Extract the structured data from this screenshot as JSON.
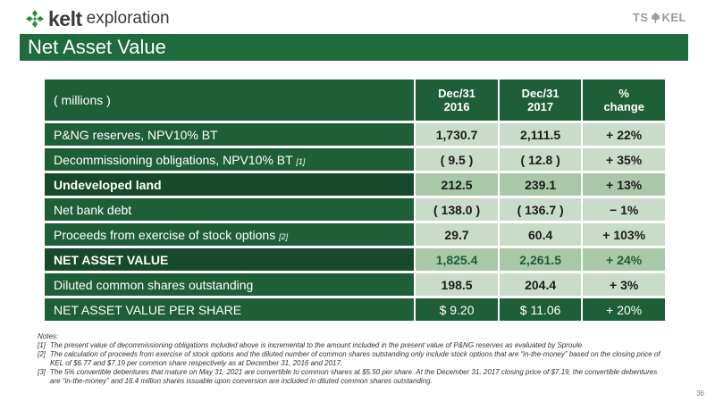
{
  "logo": {
    "brand": "kelt",
    "sub": "exploration"
  },
  "exchange": {
    "left": "TS",
    "right": "KEL"
  },
  "slide": {
    "title": "Net Asset Value",
    "page_number": "36"
  },
  "table": {
    "header": {
      "label": "( millions )",
      "col1": "Dec/31\n2016",
      "col2": "Dec/31\n2017",
      "col3": "%\nchange"
    },
    "rows": [
      {
        "label": "P&NG reserves, NPV10% BT",
        "note": "",
        "v1": "1,730.7",
        "v2": "2,111.5",
        "v3": "+ 22%"
      },
      {
        "label": "Decommissioning obligations, NPV10% BT",
        "note": "[1]",
        "v1": "( 9.5 )",
        "v2": "( 12.8 )",
        "v3": "+ 35%"
      },
      {
        "label": "Undeveloped land",
        "note": "",
        "v1": "212.5",
        "v2": "239.1",
        "v3": "+ 13%"
      },
      {
        "label": "Net bank debt",
        "note": "",
        "v1": "( 138.0 )",
        "v2": "( 136.7 )",
        "v3": "− 1%"
      },
      {
        "label": "Proceeds from exercise of stock options",
        "note": "[2]",
        "v1": "29.7",
        "v2": "60.4",
        "v3": "+ 103%"
      },
      {
        "label": "NET ASSET VALUE",
        "note": "",
        "v1": "1,825.4",
        "v2": "2,261.5",
        "v3": "+ 24%"
      },
      {
        "label": "Diluted common shares outstanding",
        "note": "",
        "v1": "198.5",
        "v2": "204.4",
        "v3": "+ 3%"
      },
      {
        "label": "NET ASSET VALUE PER SHARE",
        "note": "",
        "v1": "$ 9.20",
        "v2": "$ 11.06",
        "v3": "+ 20%"
      }
    ]
  },
  "notes": {
    "heading": "Notes:",
    "items": [
      {
        "num": "[1]",
        "text": "The present value of decommissioning obligations included above is incremental to the amount included in the present value of P&NG reserves as evaluated by Sproule."
      },
      {
        "num": "[2]",
        "text": "The calculation of proceeds from exercise of stock options and the diluted number of common shares outstanding only include stock options that are “in-the-money” based on the closing price of KEL of $6.77 and $7.19 per common share respectively as at December 31, 2016 and 2017."
      },
      {
        "num": "[3]",
        "text": "The 5% convertible debentures that mature on May 31, 2021 are convertible to common shares at $5.50 per share. At the December 31, 2017 closing price of $7.19, the convertible debentures are “in-the-money” and 16.4 million shares issuable upon conversion are included in diluted common shares outstanding."
      }
    ]
  },
  "colors": {
    "brand_green": "#1f6b3b",
    "header_green": "#1f5f37",
    "row_light": "#c9dcc9",
    "row_dark": "#a8c8a8"
  },
  "icons": {
    "logo_icon": "clover-cross-icon",
    "exchange_icon": "maple-leaf-icon"
  }
}
